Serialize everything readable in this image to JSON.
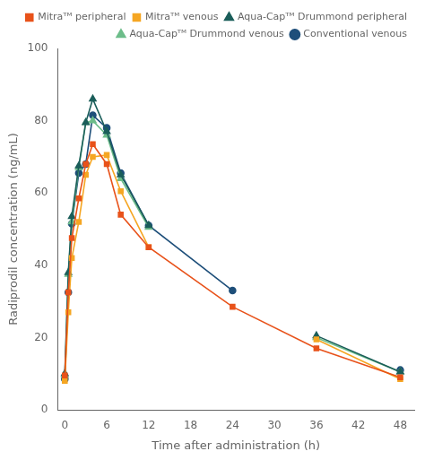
{
  "chart_data": {
    "type": "line",
    "xlabel": "Time after administration (h)",
    "ylabel": "Radiprodil concentration (ng/mL)",
    "x": [
      -0.5,
      0,
      0.5,
      1,
      2,
      3,
      4,
      6,
      8,
      12,
      24,
      36,
      48
    ],
    "series": [
      {
        "name": "Mitraᵀᴹ peripheral",
        "color": "#E8521A",
        "marker": "square",
        "values": [
          null,
          9.5,
          32.5,
          47.5,
          58.5,
          68.0,
          73.5,
          68.0,
          54.0,
          45.0,
          28.5,
          17.0,
          9.0
        ]
      },
      {
        "name": "Mitraᵀᴹ venous",
        "color": "#F5A623",
        "marker": "square",
        "values": [
          null,
          8.0,
          27.0,
          42.0,
          52.0,
          65.0,
          70.0,
          70.5,
          60.5,
          45.0,
          null,
          19.5,
          8.5
        ]
      },
      {
        "name": "Aqua-Capᵀᴹ Drummond peripheral",
        "color": "#1B5E5A",
        "marker": "triangle",
        "values": [
          null,
          10.0,
          38.0,
          53.5,
          67.5,
          79.5,
          86.0,
          77.0,
          65.0,
          51.0,
          null,
          20.5,
          10.5
        ]
      },
      {
        "name": "Aqua-Capᵀᴹ Drummond venous",
        "color": "#6DBD8A",
        "marker": "triangle",
        "values": [
          null,
          9.5,
          37.5,
          52.0,
          67.0,
          79.5,
          80.0,
          76.0,
          64.0,
          50.5,
          null,
          20.0,
          10.5
        ]
      },
      {
        "name": "Conventional venous",
        "color": "#1E4F7A",
        "marker": "circle",
        "values": [
          null,
          8.5,
          32.5,
          51.5,
          65.5,
          68.0,
          81.5,
          78.0,
          65.5,
          51.0,
          33.0,
          null,
          11.0
        ]
      }
    ],
    "xlim": [
      -1.0,
      50
    ],
    "ylim": [
      0,
      100
    ],
    "xticks": [
      0,
      6,
      12,
      18,
      24,
      30,
      36,
      42,
      48
    ],
    "yticks": [
      0,
      20,
      40,
      60,
      80,
      100
    ],
    "grid": false,
    "legend": "upper right"
  }
}
